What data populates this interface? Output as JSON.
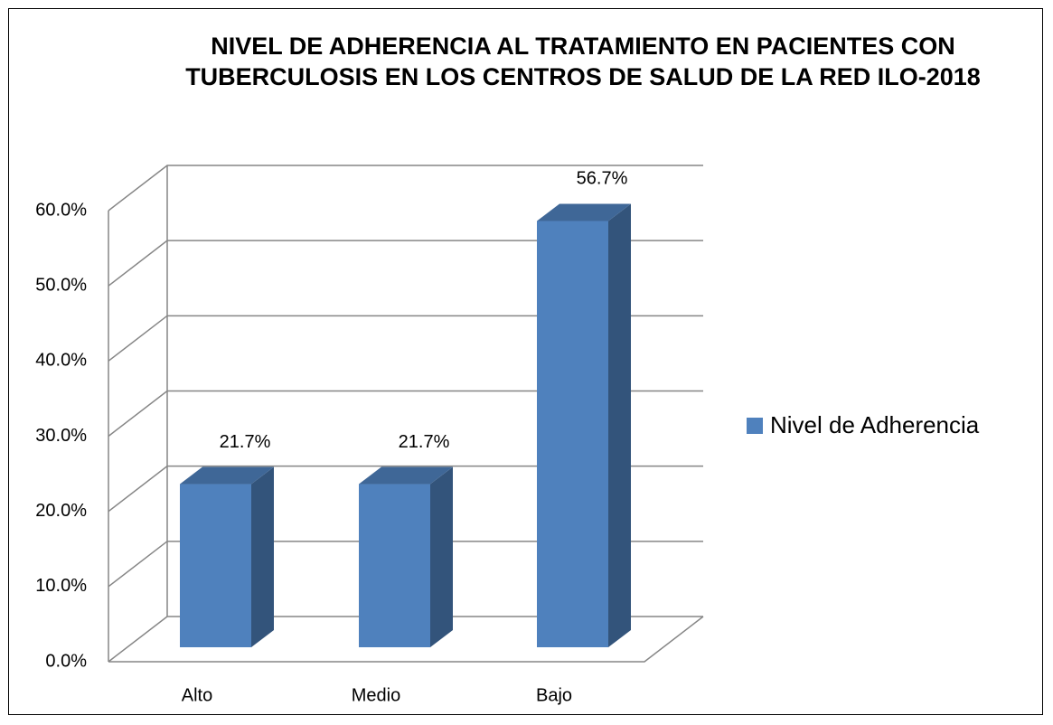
{
  "chart_data": {
    "type": "bar3d",
    "title": "NIVEL DE ADHERENCIA AL TRATAMIENTO EN PACIENTES CON TUBERCULOSIS EN LOS CENTROS DE SALUD DE LA RED ILO-2018",
    "categories": [
      "Alto",
      "Medio",
      "Bajo"
    ],
    "series": [
      {
        "name": "Nivel de Adherencia",
        "color": "#4f81bd",
        "values": [
          21.7,
          21.7,
          56.7
        ],
        "value_labels": [
          "21.7%",
          "21.7%",
          "56.7%"
        ]
      }
    ],
    "ylim": [
      0,
      60
    ],
    "yticks": [
      {
        "value": 0,
        "label": "0.0%"
      },
      {
        "value": 10,
        "label": "10.0%"
      },
      {
        "value": 20,
        "label": "20.0%"
      },
      {
        "value": 30,
        "label": "30.0%"
      },
      {
        "value": 40,
        "label": "40.0%"
      },
      {
        "value": 50,
        "label": "50.0%"
      },
      {
        "value": 60,
        "label": "60.0%"
      }
    ],
    "grid": true,
    "legend": "right"
  }
}
